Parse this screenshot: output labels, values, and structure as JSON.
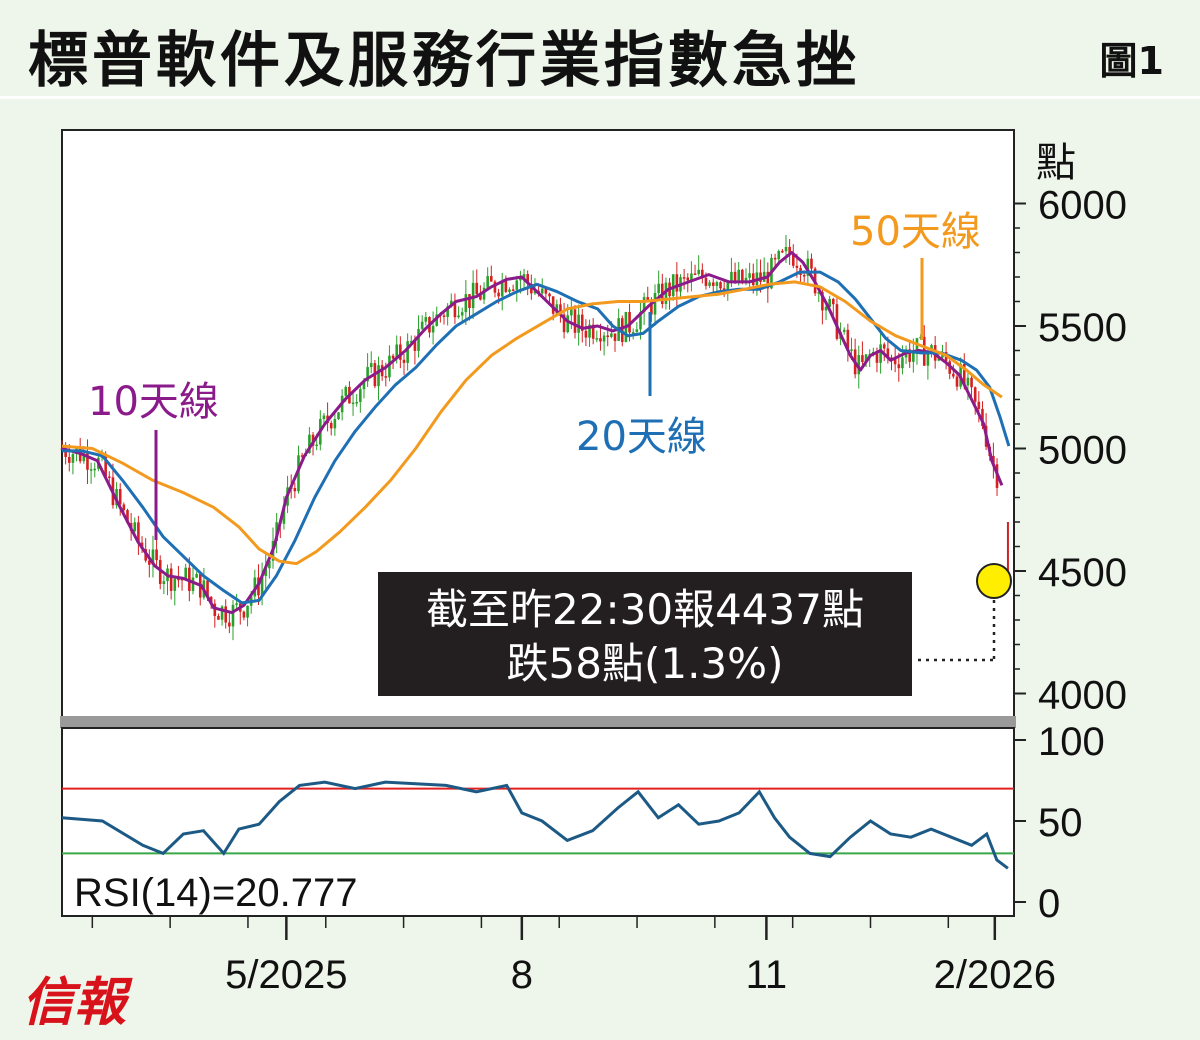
{
  "header": {
    "title": "標普軟件及服務行業指數急挫",
    "figure_no": "圖1"
  },
  "brand": "信報",
  "chart_data": [
    {
      "type": "line",
      "subtype": "candlestick-with-moving-averages",
      "y_unit": "點",
      "ylim": [
        3900,
        6300
      ],
      "yticks": [
        "6000",
        "5500",
        "5000",
        "4500",
        "4000"
      ],
      "xticks": [
        "5/2025",
        "8",
        "11",
        "2/2026"
      ],
      "grid": false,
      "colors": {
        "up": "#2aa02a",
        "down": "#d42020",
        "ma10": "#8b1a8b",
        "ma20": "#1f6fb5",
        "ma50": "#f39a1e"
      },
      "series": [
        {
          "name": "10天線",
          "color": "#8b1a8b",
          "points": [
            [
              0,
              5000
            ],
            [
              18,
              4980
            ],
            [
              35,
              4950
            ],
            [
              55,
              4780
            ],
            [
              75,
              4620
            ],
            [
              92,
              4520
            ],
            [
              105,
              4480
            ],
            [
              120,
              4470
            ],
            [
              138,
              4440
            ],
            [
              150,
              4350
            ],
            [
              168,
              4330
            ],
            [
              180,
              4360
            ],
            [
              195,
              4450
            ],
            [
              210,
              4600
            ],
            [
              222,
              4800
            ],
            [
              240,
              4970
            ],
            [
              260,
              5100
            ],
            [
              280,
              5200
            ],
            [
              300,
              5280
            ],
            [
              320,
              5330
            ],
            [
              340,
              5400
            ],
            [
              360,
              5490
            ],
            [
              375,
              5550
            ],
            [
              390,
              5600
            ],
            [
              410,
              5620
            ],
            [
              425,
              5660
            ],
            [
              440,
              5690
            ],
            [
              455,
              5700
            ],
            [
              470,
              5640
            ],
            [
              485,
              5580
            ],
            [
              500,
              5520
            ],
            [
              515,
              5490
            ],
            [
              530,
              5500
            ],
            [
              545,
              5480
            ],
            [
              560,
              5500
            ],
            [
              580,
              5580
            ],
            [
              600,
              5650
            ],
            [
              620,
              5680
            ],
            [
              640,
              5710
            ],
            [
              660,
              5680
            ],
            [
              680,
              5680
            ],
            [
              698,
              5700
            ],
            [
              710,
              5760
            ],
            [
              722,
              5800
            ],
            [
              733,
              5760
            ],
            [
              745,
              5680
            ],
            [
              758,
              5580
            ],
            [
              770,
              5470
            ],
            [
              780,
              5380
            ],
            [
              790,
              5320
            ],
            [
              800,
              5380
            ],
            [
              810,
              5400
            ],
            [
              820,
              5360
            ],
            [
              835,
              5390
            ],
            [
              848,
              5400
            ],
            [
              862,
              5390
            ],
            [
              875,
              5350
            ],
            [
              888,
              5300
            ],
            [
              900,
              5200
            ],
            [
              912,
              5100
            ],
            [
              920,
              4950
            ],
            [
              930,
              4850
            ]
          ]
        },
        {
          "name": "20天線",
          "color": "#1f6fb5",
          "points": [
            [
              0,
              4990
            ],
            [
              20,
              4990
            ],
            [
              40,
              4970
            ],
            [
              60,
              4870
            ],
            [
              80,
              4760
            ],
            [
              100,
              4640
            ],
            [
              120,
              4560
            ],
            [
              140,
              4480
            ],
            [
              160,
              4420
            ],
            [
              178,
              4370
            ],
            [
              195,
              4380
            ],
            [
              212,
              4480
            ],
            [
              230,
              4620
            ],
            [
              250,
              4800
            ],
            [
              270,
              4950
            ],
            [
              290,
              5070
            ],
            [
              310,
              5170
            ],
            [
              330,
              5260
            ],
            [
              350,
              5330
            ],
            [
              370,
              5420
            ],
            [
              390,
              5500
            ],
            [
              410,
              5550
            ],
            [
              430,
              5600
            ],
            [
              450,
              5640
            ],
            [
              470,
              5670
            ],
            [
              490,
              5640
            ],
            [
              510,
              5600
            ],
            [
              530,
              5570
            ],
            [
              545,
              5500
            ],
            [
              560,
              5460
            ],
            [
              575,
              5470
            ],
            [
              590,
              5520
            ],
            [
              610,
              5580
            ],
            [
              630,
              5620
            ],
            [
              650,
              5640
            ],
            [
              670,
              5650
            ],
            [
              690,
              5650
            ],
            [
              710,
              5680
            ],
            [
              730,
              5720
            ],
            [
              750,
              5720
            ],
            [
              768,
              5680
            ],
            [
              785,
              5610
            ],
            [
              800,
              5530
            ],
            [
              815,
              5450
            ],
            [
              830,
              5400
            ],
            [
              850,
              5390
            ],
            [
              870,
              5390
            ],
            [
              890,
              5360
            ],
            [
              905,
              5320
            ],
            [
              918,
              5250
            ],
            [
              928,
              5130
            ],
            [
              937,
              5010
            ]
          ]
        },
        {
          "name": "50天線",
          "color": "#f39a1e",
          "points": [
            [
              0,
              5010
            ],
            [
              30,
              5000
            ],
            [
              60,
              4940
            ],
            [
              90,
              4870
            ],
            [
              120,
              4820
            ],
            [
              150,
              4760
            ],
            [
              175,
              4680
            ],
            [
              195,
              4590
            ],
            [
              215,
              4540
            ],
            [
              232,
              4530
            ],
            [
              252,
              4580
            ],
            [
              275,
              4660
            ],
            [
              300,
              4760
            ],
            [
              325,
              4870
            ],
            [
              350,
              5000
            ],
            [
              375,
              5150
            ],
            [
              400,
              5280
            ],
            [
              425,
              5380
            ],
            [
              450,
              5450
            ],
            [
              475,
              5510
            ],
            [
              500,
              5570
            ],
            [
              525,
              5590
            ],
            [
              550,
              5600
            ],
            [
              575,
              5600
            ],
            [
              600,
              5610
            ],
            [
              625,
              5620
            ],
            [
              650,
              5630
            ],
            [
              675,
              5650
            ],
            [
              700,
              5670
            ],
            [
              725,
              5680
            ],
            [
              750,
              5660
            ],
            [
              775,
              5600
            ],
            [
              800,
              5520
            ],
            [
              825,
              5460
            ],
            [
              850,
              5420
            ],
            [
              875,
              5380
            ],
            [
              895,
              5320
            ],
            [
              912,
              5260
            ],
            [
              930,
              5210
            ]
          ]
        }
      ],
      "annotations": [
        {
          "text": "截至昨22:30報4437點"
        },
        {
          "text": "跌58點(1.3%)"
        }
      ],
      "last_value": 4437
    },
    {
      "type": "line",
      "ylim": [
        0,
        100
      ],
      "yticks": [
        "100",
        "50",
        "0"
      ],
      "reference_lines": [
        70,
        30
      ],
      "label": "RSI(14)=20.777",
      "value": 20.777,
      "colors": {
        "line": "#1c5a85",
        "overbought": "#e02020",
        "oversold": "#3aa64a"
      }
    }
  ]
}
